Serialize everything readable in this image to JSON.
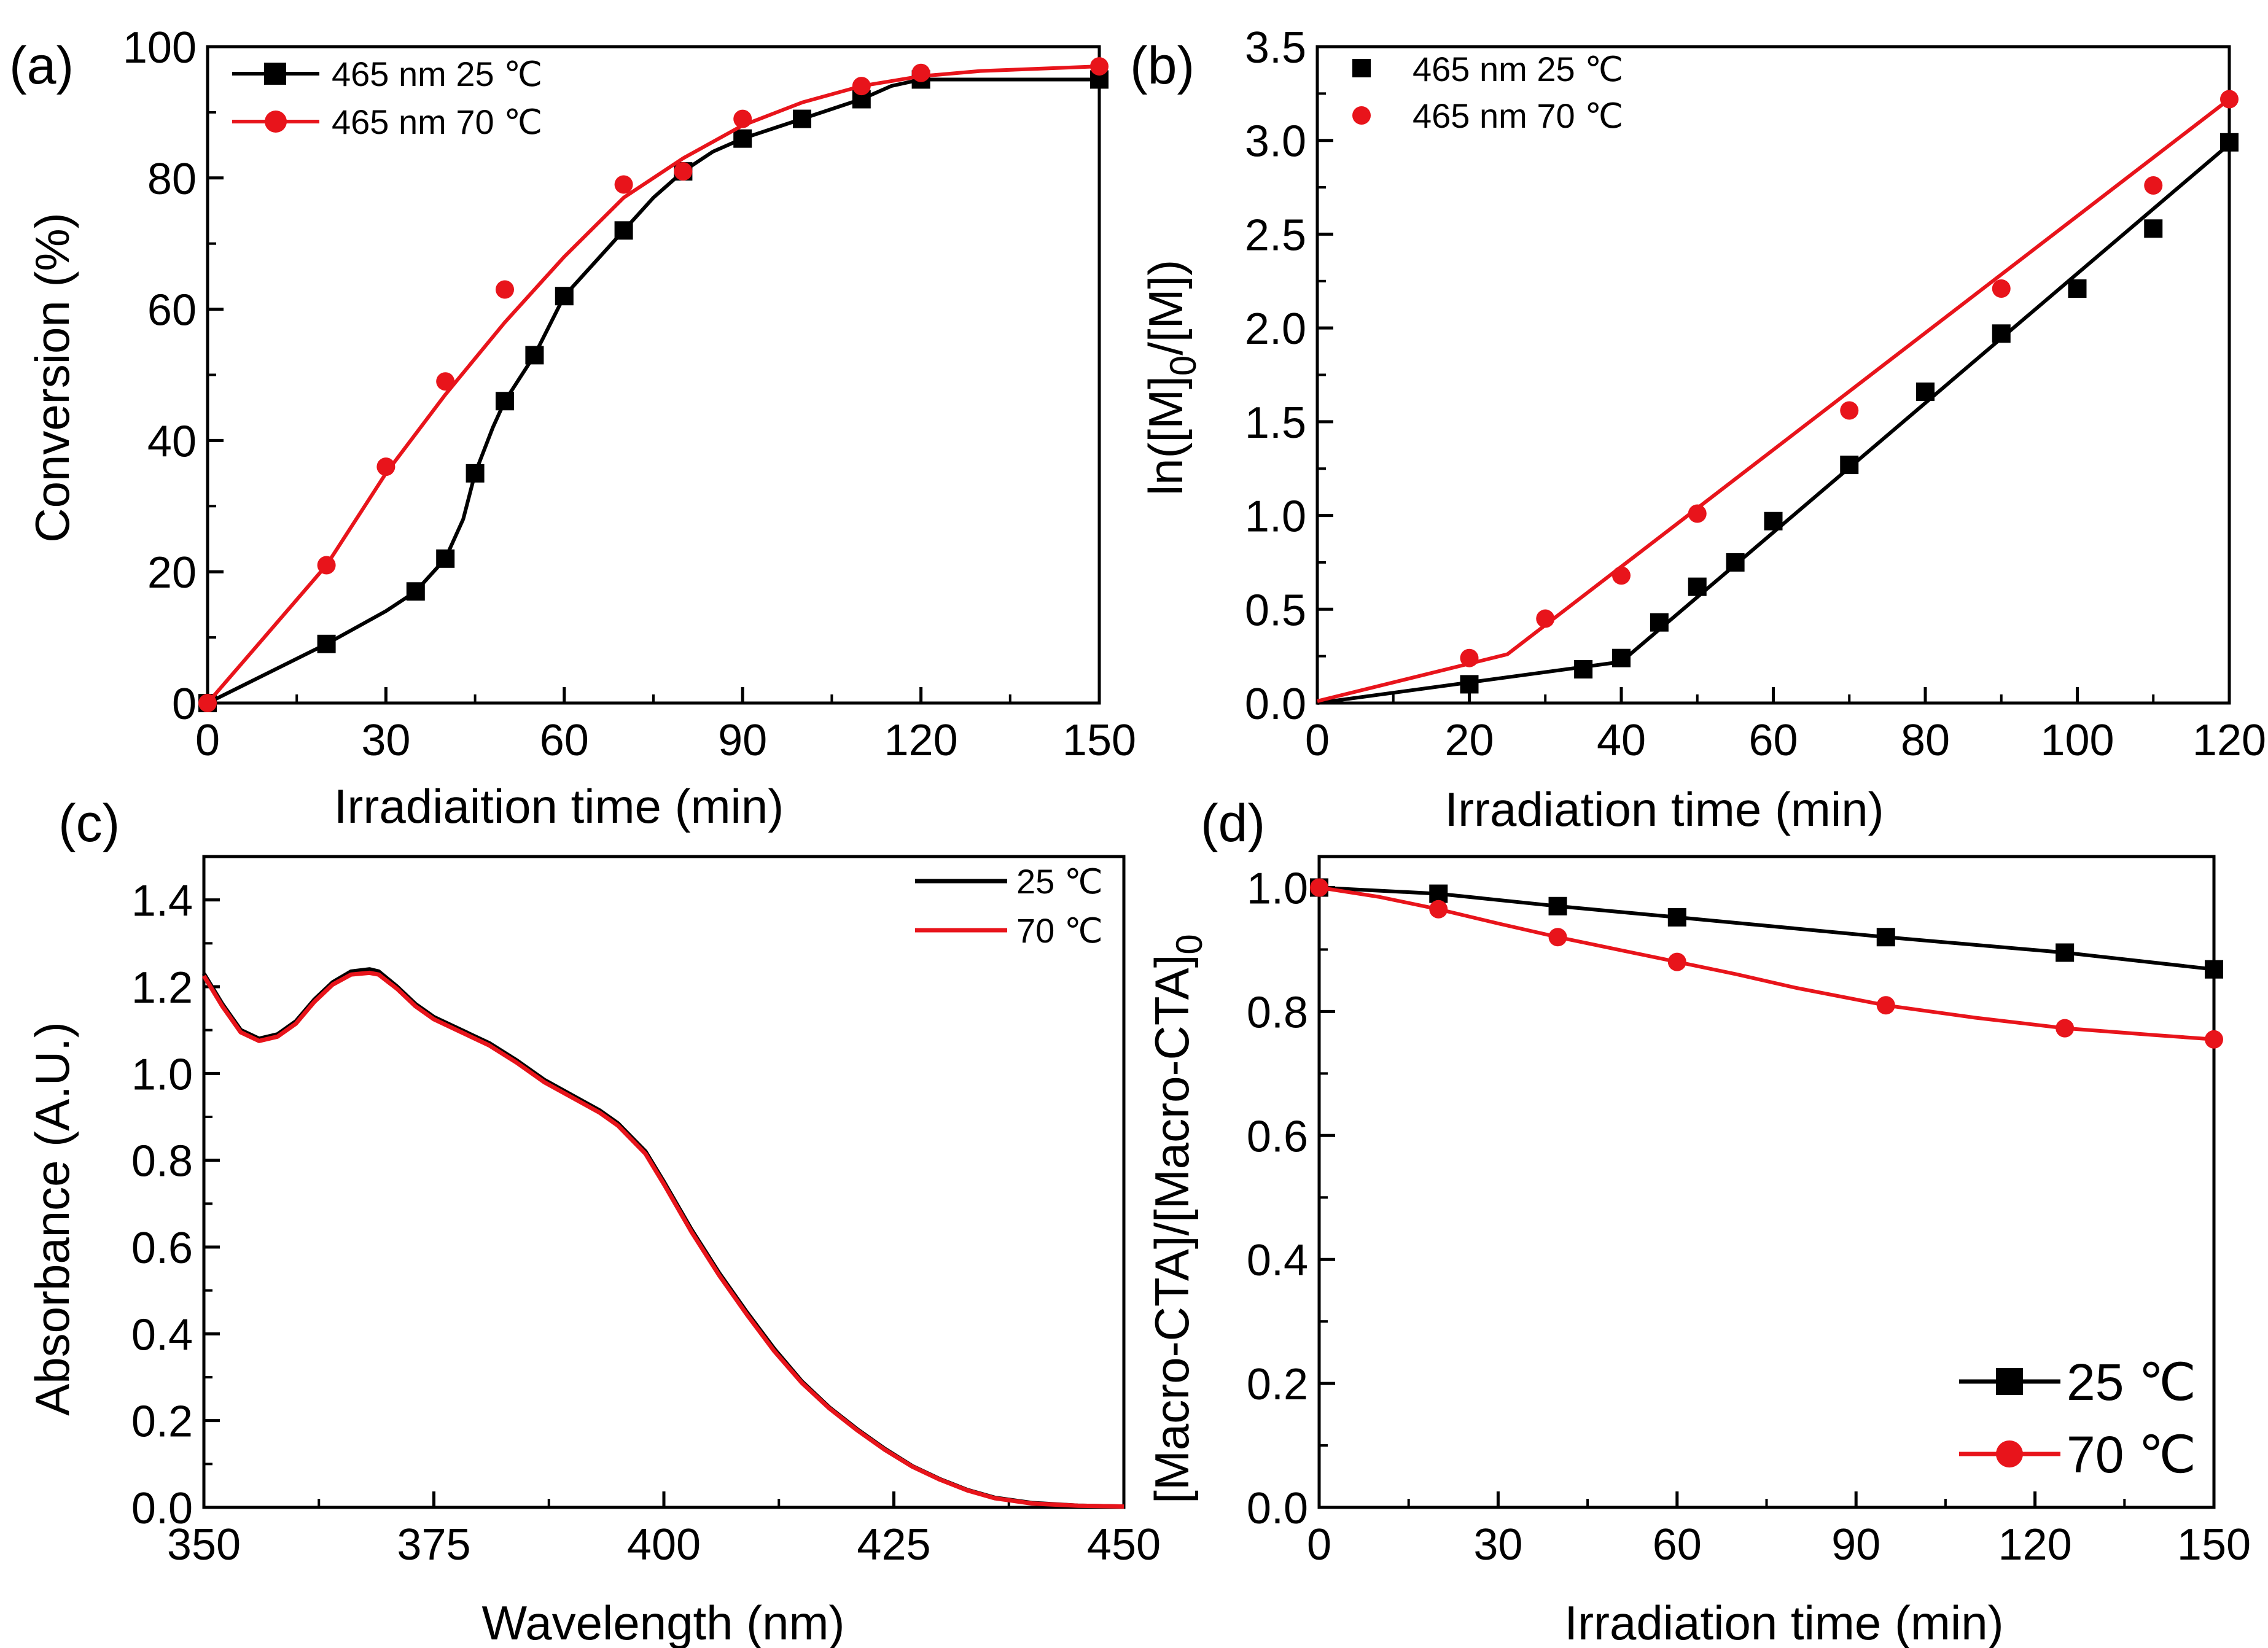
{
  "figure": {
    "colors": {
      "black": "#000000",
      "red": "#e8141b"
    }
  },
  "chart_data": [
    {
      "panel": "a",
      "label": "(a)",
      "type": "line",
      "xlabel": "Irradiaition time (min)",
      "ylabel": "Conversion (%)",
      "xlim": [
        0,
        150
      ],
      "ylim": [
        0,
        100
      ],
      "xticks": [
        0,
        30,
        60,
        90,
        120,
        150
      ],
      "yticks": [
        0,
        20,
        40,
        60,
        80,
        100
      ],
      "legend_position": "top-left",
      "series": [
        {
          "name": "465 nm 25 ℃",
          "color": "#000000",
          "marker": "square",
          "points": [
            [
              0,
              0
            ],
            [
              20,
              9
            ],
            [
              35,
              17
            ],
            [
              40,
              22
            ],
            [
              45,
              35
            ],
            [
              50,
              46
            ],
            [
              55,
              53
            ],
            [
              60,
              62
            ],
            [
              70,
              72
            ],
            [
              80,
              81
            ],
            [
              90,
              86
            ],
            [
              100,
              89
            ],
            [
              110,
              92
            ],
            [
              120,
              95
            ],
            [
              150,
              95
            ]
          ],
          "curve": [
            [
              0,
              0
            ],
            [
              20,
              9
            ],
            [
              30,
              14
            ],
            [
              35,
              17
            ],
            [
              40,
              22
            ],
            [
              43,
              28
            ],
            [
              45,
              35
            ],
            [
              48,
              42
            ],
            [
              50,
              46
            ],
            [
              55,
              53
            ],
            [
              60,
              62
            ],
            [
              65,
              67
            ],
            [
              70,
              72
            ],
            [
              75,
              77
            ],
            [
              80,
              81
            ],
            [
              85,
              84
            ],
            [
              90,
              86
            ],
            [
              100,
              89
            ],
            [
              110,
              92
            ],
            [
              115,
              94
            ],
            [
              120,
              95
            ],
            [
              130,
              95
            ],
            [
              150,
              95
            ]
          ]
        },
        {
          "name": "465 nm 70 ℃",
          "color": "#e8141b",
          "marker": "circle",
          "points": [
            [
              0,
              0
            ],
            [
              20,
              21
            ],
            [
              30,
              36
            ],
            [
              40,
              49
            ],
            [
              50,
              63
            ],
            [
              70,
              79
            ],
            [
              80,
              81
            ],
            [
              90,
              89
            ],
            [
              110,
              94
            ],
            [
              120,
              96
            ],
            [
              150,
              97
            ]
          ],
          "curve": [
            [
              0,
              0
            ],
            [
              10,
              10.5
            ],
            [
              20,
              21
            ],
            [
              30,
              35
            ],
            [
              40,
              47
            ],
            [
              50,
              58
            ],
            [
              60,
              68
            ],
            [
              70,
              77
            ],
            [
              80,
              83
            ],
            [
              90,
              88
            ],
            [
              100,
              91.5
            ],
            [
              110,
              94
            ],
            [
              120,
              95.5
            ],
            [
              130,
              96.3
            ],
            [
              150,
              97
            ]
          ]
        }
      ]
    },
    {
      "panel": "b",
      "label": "(b)",
      "type": "scatter",
      "xlabel": "Irradiation time (min)",
      "ylabel": "ln([M]",
      "ylabel_sub0": "0",
      "ylabel_mid": "/[M])",
      "xlim": [
        0,
        120
      ],
      "ylim": [
        0,
        3.5
      ],
      "xticks": [
        0,
        20,
        40,
        60,
        80,
        100,
        120
      ],
      "yticks": [
        0.0,
        0.5,
        1.0,
        1.5,
        2.0,
        2.5,
        3.0,
        3.5
      ],
      "ytick_labels": [
        "0.0",
        "0.5",
        "1.0",
        "1.5",
        "2.0",
        "2.5",
        "3.0",
        "3.5"
      ],
      "legend_position": "top-left",
      "series": [
        {
          "name": "465 nm 25 ℃",
          "color": "#000000",
          "marker": "square",
          "points": [
            [
              20,
              0.1
            ],
            [
              35,
              0.18
            ],
            [
              40,
              0.24
            ],
            [
              45,
              0.43
            ],
            [
              50,
              0.62
            ],
            [
              55,
              0.75
            ],
            [
              60,
              0.97
            ],
            [
              70,
              1.27
            ],
            [
              80,
              1.66
            ],
            [
              90,
              1.97
            ],
            [
              100,
              2.21
            ],
            [
              110,
              2.53
            ],
            [
              120,
              2.99
            ]
          ],
          "fit": [
            [
              0,
              0
            ],
            [
              40,
              0.22
            ],
            [
              120,
              2.98
            ]
          ]
        },
        {
          "name": "465 nm 70 ℃",
          "color": "#e8141b",
          "marker": "circle",
          "points": [
            [
              20,
              0.24
            ],
            [
              30,
              0.45
            ],
            [
              40,
              0.68
            ],
            [
              50,
              1.01
            ],
            [
              70,
              1.56
            ],
            [
              90,
              2.21
            ],
            [
              110,
              2.76
            ],
            [
              120,
              3.22
            ]
          ],
          "fit": [
            [
              0,
              0.01
            ],
            [
              25,
              0.26
            ],
            [
              120,
              3.22
            ]
          ]
        }
      ]
    },
    {
      "panel": "c",
      "label": "(c)",
      "type": "line",
      "xlabel": "Wavelength (nm)",
      "ylabel": "Absorbance (A.U.)",
      "xlim": [
        350,
        450
      ],
      "ylim": [
        0,
        1.5
      ],
      "xticks": [
        350,
        375,
        400,
        425,
        450
      ],
      "yticks": [
        0.0,
        0.2,
        0.4,
        0.6,
        0.8,
        1.0,
        1.2,
        1.4
      ],
      "ytick_labels": [
        "0.0",
        "0.2",
        "0.4",
        "0.6",
        "0.8",
        "1.0",
        "1.2",
        "1.4"
      ],
      "legend_position": "top-right",
      "series": [
        {
          "name": "25 ℃",
          "color": "#000000",
          "points": [
            [
              350,
              1.23
            ],
            [
              352,
              1.16
            ],
            [
              354,
              1.1
            ],
            [
              356,
              1.08
            ],
            [
              358,
              1.09
            ],
            [
              360,
              1.12
            ],
            [
              362,
              1.17
            ],
            [
              364,
              1.21
            ],
            [
              366,
              1.235
            ],
            [
              368,
              1.24
            ],
            [
              369,
              1.235
            ],
            [
              371,
              1.2
            ],
            [
              373,
              1.16
            ],
            [
              375,
              1.13
            ],
            [
              378,
              1.1
            ],
            [
              381,
              1.07
            ],
            [
              384,
              1.03
            ],
            [
              387,
              0.985
            ],
            [
              390,
              0.95
            ],
            [
              393,
              0.915
            ],
            [
              395,
              0.885
            ],
            [
              398,
              0.82
            ],
            [
              400,
              0.75
            ],
            [
              403,
              0.64
            ],
            [
              406,
              0.54
            ],
            [
              409,
              0.45
            ],
            [
              412,
              0.365
            ],
            [
              415,
              0.29
            ],
            [
              418,
              0.23
            ],
            [
              421,
              0.18
            ],
            [
              424,
              0.135
            ],
            [
              427,
              0.095
            ],
            [
              430,
              0.065
            ],
            [
              433,
              0.04
            ],
            [
              436,
              0.022
            ],
            [
              440,
              0.01
            ],
            [
              445,
              0.004
            ],
            [
              450,
              0.002
            ]
          ]
        },
        {
          "name": "70 ℃",
          "color": "#e8141b",
          "points": [
            [
              350,
              1.225
            ],
            [
              352,
              1.155
            ],
            [
              354,
              1.095
            ],
            [
              356,
              1.075
            ],
            [
              358,
              1.085
            ],
            [
              360,
              1.115
            ],
            [
              362,
              1.165
            ],
            [
              364,
              1.205
            ],
            [
              366,
              1.228
            ],
            [
              368,
              1.232
            ],
            [
              369,
              1.228
            ],
            [
              371,
              1.195
            ],
            [
              373,
              1.155
            ],
            [
              375,
              1.125
            ],
            [
              378,
              1.095
            ],
            [
              381,
              1.065
            ],
            [
              384,
              1.025
            ],
            [
              387,
              0.98
            ],
            [
              390,
              0.945
            ],
            [
              393,
              0.91
            ],
            [
              395,
              0.88
            ],
            [
              398,
              0.815
            ],
            [
              400,
              0.745
            ],
            [
              403,
              0.635
            ],
            [
              406,
              0.535
            ],
            [
              409,
              0.445
            ],
            [
              412,
              0.36
            ],
            [
              415,
              0.287
            ],
            [
              418,
              0.228
            ],
            [
              421,
              0.178
            ],
            [
              424,
              0.133
            ],
            [
              427,
              0.094
            ],
            [
              430,
              0.064
            ],
            [
              433,
              0.039
            ],
            [
              436,
              0.021
            ],
            [
              440,
              0.009
            ],
            [
              445,
              0.004
            ],
            [
              450,
              0.002
            ]
          ]
        }
      ]
    },
    {
      "panel": "d",
      "label": "(d)",
      "type": "line",
      "xlabel": "Irradiation time (min)",
      "ylabel": "[Macro-CTA]/[Macro-CTA]",
      "ylabel_sub0": "0",
      "xlim": [
        0,
        150
      ],
      "ylim": [
        0,
        1.05
      ],
      "xticks": [
        0,
        30,
        60,
        90,
        120,
        150
      ],
      "yticks": [
        0.0,
        0.2,
        0.4,
        0.6,
        0.8,
        1.0
      ],
      "ytick_labels": [
        "0.0",
        "0.2",
        "0.4",
        "0.6",
        "0.8",
        "1.0"
      ],
      "legend_position": "bottom-right",
      "series": [
        {
          "name": "25 ℃",
          "color": "#000000",
          "marker": "square",
          "points": [
            [
              0,
              1.0
            ],
            [
              20,
              0.99
            ],
            [
              40,
              0.97
            ],
            [
              60,
              0.952
            ],
            [
              95,
              0.92
            ],
            [
              125,
              0.895
            ],
            [
              150,
              0.868
            ]
          ],
          "curve": [
            [
              0,
              1.0
            ],
            [
              20,
              0.99
            ],
            [
              40,
              0.97
            ],
            [
              60,
              0.952
            ],
            [
              95,
              0.92
            ],
            [
              125,
              0.895
            ],
            [
              150,
              0.868
            ]
          ]
        },
        {
          "name": "70 ℃",
          "color": "#e8141b",
          "marker": "circle",
          "points": [
            [
              0,
              1.0
            ],
            [
              20,
              0.965
            ],
            [
              40,
              0.92
            ],
            [
              60,
              0.88
            ],
            [
              95,
              0.81
            ],
            [
              125,
              0.773
            ],
            [
              150,
              0.755
            ]
          ],
          "curve": [
            [
              0,
              1.0
            ],
            [
              10,
              0.985
            ],
            [
              20,
              0.965
            ],
            [
              30,
              0.942
            ],
            [
              40,
              0.92
            ],
            [
              50,
              0.9
            ],
            [
              60,
              0.88
            ],
            [
              70,
              0.86
            ],
            [
              80,
              0.838
            ],
            [
              95,
              0.81
            ],
            [
              110,
              0.79
            ],
            [
              125,
              0.773
            ],
            [
              140,
              0.762
            ],
            [
              150,
              0.755
            ]
          ]
        }
      ]
    }
  ]
}
